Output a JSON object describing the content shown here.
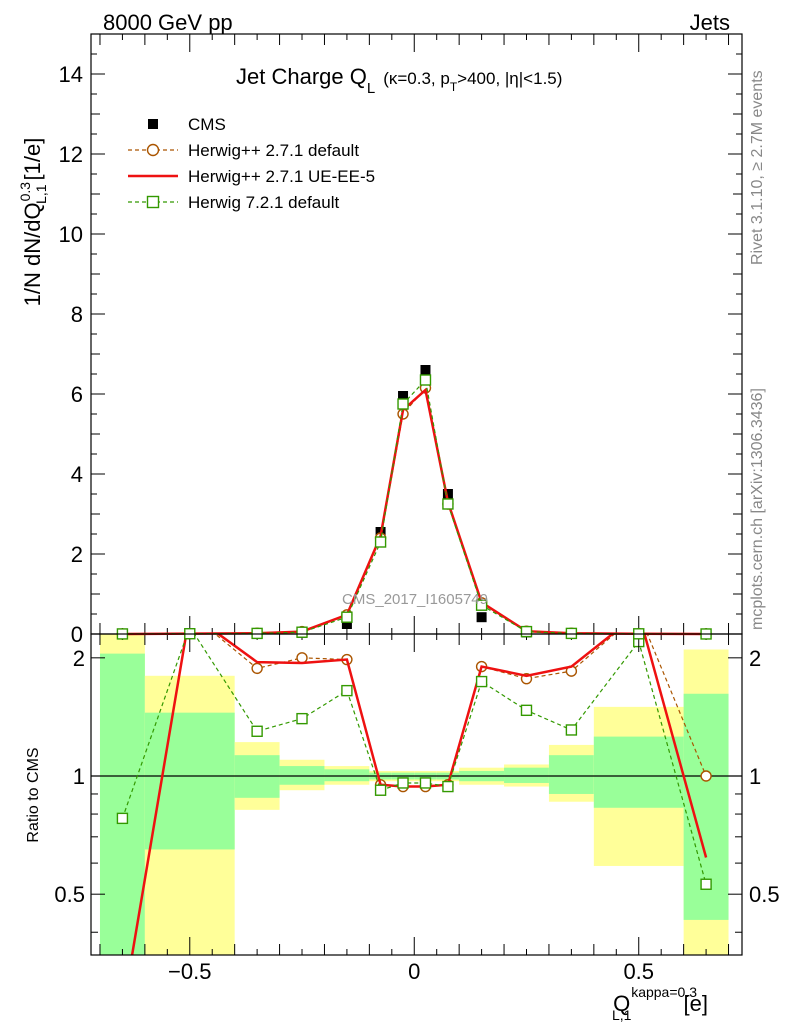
{
  "header": {
    "left": "8000 GeV pp",
    "right": "Jets"
  },
  "side": {
    "rivet": "Rivet 3.1.10, ≥ 2.7M events",
    "mcplots": "mcplots.cern.ch [arXiv:1306.3436]"
  },
  "title": {
    "main": "Jet Charge Q",
    "main_sub": "L",
    "cuts_a": "(κ=0.3, p",
    "cuts_sub": "T",
    "cuts_b": ">400, |η|<1.5)"
  },
  "watermark": "CMS_2017_I1605749",
  "axes": {
    "ylabel_main": "1/N dN/dQ",
    "ylabel_main_sup": "0.3",
    "ylabel_main_sub": "L,1",
    "ylabel_main_unit": "[1/e]",
    "ylabel_ratio": "Ratio to CMS",
    "xlabel": "Q",
    "xlabel_sup": "kappa=0.3",
    "xlabel_sub": "L,1",
    "xlabel_unit": "[e]"
  },
  "legend": [
    {
      "label": "CMS",
      "color": "#000000",
      "marker": "filled-square",
      "line": "none"
    },
    {
      "label": "Herwig++ 2.7.1 default",
      "color": "#aa5500",
      "marker": "open-circle",
      "line": "dashed"
    },
    {
      "label": "Herwig++ 2.7.1 UE-EE-5",
      "color": "#ee1111",
      "marker": "none",
      "line": "solid"
    },
    {
      "label": "Herwig 7.2.1 default",
      "color": "#339900",
      "marker": "open-square",
      "line": "dashed"
    }
  ],
  "chart_data": [
    {
      "type": "line",
      "panel": "main",
      "xlim": [
        -0.72,
        0.73
      ],
      "ylim": [
        0,
        15
      ],
      "yticks": [
        "0",
        "2",
        "4",
        "6",
        "8",
        "10",
        "12",
        "14"
      ],
      "bins": [
        [
          -0.7,
          -0.6
        ],
        [
          -0.6,
          -0.4
        ],
        [
          -0.4,
          -0.3
        ],
        [
          -0.3,
          -0.2
        ],
        [
          -0.2,
          -0.1
        ],
        [
          -0.1,
          -0.05
        ],
        [
          -0.05,
          0
        ],
        [
          0,
          0.05
        ],
        [
          0.05,
          0.1
        ],
        [
          0.1,
          0.2
        ],
        [
          0.2,
          0.3
        ],
        [
          0.3,
          0.4
        ],
        [
          0.4,
          0.6
        ],
        [
          0.6,
          0.7
        ]
      ],
      "x": [
        -0.65,
        -0.5,
        -0.35,
        -0.25,
        -0.15,
        -0.075,
        -0.025,
        0.025,
        0.075,
        0.15,
        0.25,
        0.35,
        0.5,
        0.65
      ],
      "series": [
        {
          "name": "CMS",
          "values": [
            0.002,
            0.003,
            0.01,
            0.03,
            0.25,
            2.55,
            5.95,
            6.6,
            3.5,
            0.42,
            0.04,
            0.01,
            0.002,
            0.001
          ]
        },
        {
          "name": "Herwig++ 2.7.1 default",
          "values": [
            0.002,
            0.008,
            0.02,
            0.06,
            0.48,
            2.4,
            5.5,
            6.15,
            3.25,
            0.78,
            0.07,
            0.02,
            0.006,
            0.001
          ]
        },
        {
          "name": "Herwig++ 2.7.1 UE-EE-5",
          "values": [
            0.001,
            0.008,
            0.02,
            0.06,
            0.48,
            2.45,
            5.6,
            6.1,
            3.3,
            0.79,
            0.07,
            0.02,
            0.006,
            0.001
          ]
        },
        {
          "name": "Herwig 7.2.1 default",
          "values": [
            0.002,
            0.007,
            0.015,
            0.045,
            0.42,
            2.3,
            5.75,
            6.35,
            3.25,
            0.72,
            0.06,
            0.015,
            0.005,
            0.001
          ]
        }
      ]
    },
    {
      "type": "line",
      "panel": "ratio",
      "xlim": [
        -0.72,
        0.73
      ],
      "ylim": [
        0.35,
        2.3
      ],
      "yscale": "log",
      "yticks": [
        "0.5",
        "1",
        "2"
      ],
      "xticks": [
        "−0.5",
        "0",
        "0.5"
      ],
      "reference": 1,
      "bins": [
        [
          -0.7,
          -0.6
        ],
        [
          -0.6,
          -0.4
        ],
        [
          -0.4,
          -0.3
        ],
        [
          -0.3,
          -0.2
        ],
        [
          -0.2,
          -0.1
        ],
        [
          -0.1,
          -0.05
        ],
        [
          -0.05,
          0
        ],
        [
          0,
          0.05
        ],
        [
          0.05,
          0.1
        ],
        [
          0.1,
          0.2
        ],
        [
          0.2,
          0.3
        ],
        [
          0.3,
          0.4
        ],
        [
          0.4,
          0.6
        ],
        [
          0.6,
          0.7
        ]
      ],
      "band_total": [
        [
          0.3,
          2.3
        ],
        [
          0.3,
          1.8
        ],
        [
          0.82,
          1.22
        ],
        [
          0.92,
          1.1
        ],
        [
          0.95,
          1.06
        ],
        [
          0.97,
          1.03
        ],
        [
          0.97,
          1.03
        ],
        [
          0.97,
          1.03
        ],
        [
          0.97,
          1.03
        ],
        [
          0.95,
          1.05
        ],
        [
          0.94,
          1.07
        ],
        [
          0.86,
          1.2
        ],
        [
          0.59,
          1.5
        ],
        [
          0.3,
          2.1
        ]
      ],
      "band_stat": [
        [
          0.3,
          2.05
        ],
        [
          0.65,
          1.45
        ],
        [
          0.88,
          1.13
        ],
        [
          0.95,
          1.06
        ],
        [
          0.97,
          1.04
        ],
        [
          0.98,
          1.02
        ],
        [
          0.98,
          1.02
        ],
        [
          0.98,
          1.02
        ],
        [
          0.98,
          1.02
        ],
        [
          0.97,
          1.03
        ],
        [
          0.96,
          1.05
        ],
        [
          0.9,
          1.13
        ],
        [
          0.83,
          1.26
        ],
        [
          0.43,
          1.62
        ]
      ],
      "x": [
        -0.65,
        -0.5,
        -0.35,
        -0.25,
        -0.15,
        -0.075,
        -0.025,
        0.025,
        0.075,
        0.15,
        0.25,
        0.35,
        0.5,
        0.65
      ],
      "series": [
        {
          "name": "Herwig++ 2.7.1 default",
          "values": [
            null,
            2.6,
            1.88,
            2.0,
            1.98,
            0.95,
            0.94,
            0.94,
            0.95,
            1.9,
            1.77,
            1.85,
            2.6,
            1.0
          ]
        },
        {
          "name": "Herwig++ 2.7.1 UE-EE-5",
          "values": [
            0.25,
            2.6,
            1.95,
            1.94,
            1.98,
            0.95,
            0.94,
            0.94,
            0.95,
            1.9,
            1.8,
            1.9,
            2.6,
            0.62
          ]
        },
        {
          "name": "Herwig 7.2.1 default",
          "values": [
            0.78,
            2.4,
            1.3,
            1.4,
            1.65,
            0.92,
            0.96,
            0.96,
            0.94,
            1.74,
            1.47,
            1.31,
            2.2,
            0.53
          ]
        }
      ]
    }
  ]
}
